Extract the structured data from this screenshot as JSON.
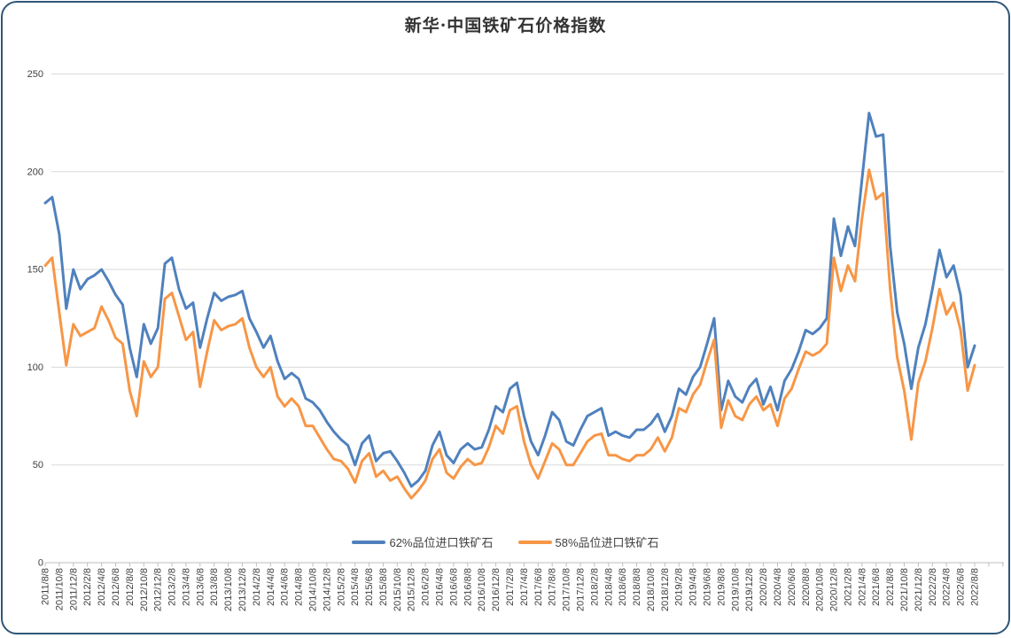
{
  "chart": {
    "frame_border_color": "#2F5679",
    "background": "#FFFFFF",
    "title_color": "#333333",
    "axis_text_color": "#3F3F3F",
    "gridline_color": "#D9D9D9",
    "axis_line_color": "#BFBFBF"
  },
  "chart_data": {
    "type": "line",
    "title": "新华·中国铁矿石价格指数",
    "xlabel": "",
    "ylabel": "",
    "ylim": [
      0,
      250
    ],
    "y_ticks": [
      0,
      50,
      100,
      150,
      200,
      250
    ],
    "grid": "horizontal",
    "legend_position": "bottom",
    "x_note": "series sampled monthly from 2011/8/8 to 2022/8/8; axis labeled every 2 months",
    "x_tick_labels": [
      "2011/8/8",
      "2011/10/8",
      "2011/12/8",
      "2012/2/8",
      "2012/4/8",
      "2012/6/8",
      "2012/8/8",
      "2012/10/8",
      "2012/12/8",
      "2013/2/8",
      "2013/4/8",
      "2013/6/8",
      "2013/8/8",
      "2013/10/8",
      "2013/12/8",
      "2014/2/8",
      "2014/4/8",
      "2014/6/8",
      "2014/8/8",
      "2014/10/8",
      "2014/12/8",
      "2015/2/8",
      "2015/4/8",
      "2015/6/8",
      "2015/8/8",
      "2015/10/8",
      "2015/12/8",
      "2016/2/8",
      "2016/4/8",
      "2016/6/8",
      "2016/8/8",
      "2016/10/8",
      "2016/12/8",
      "2017/2/8",
      "2017/4/8",
      "2017/6/8",
      "2017/8/8",
      "2017/10/8",
      "2017/12/8",
      "2018/2/8",
      "2018/4/8",
      "2018/6/8",
      "2018/8/8",
      "2018/10/8",
      "2018/12/8",
      "2019/2/8",
      "2019/4/8",
      "2019/6/8",
      "2019/8/8",
      "2019/10/8",
      "2019/12/8",
      "2020/2/8",
      "2020/4/8",
      "2020/6/8",
      "2020/8/8",
      "2020/10/8",
      "2020/12/8",
      "2021/2/8",
      "2021/4/8",
      "2021/6/8",
      "2021/8/8",
      "2021/10/8",
      "2021/12/8",
      "2022/2/8",
      "2022/4/8",
      "2022/6/8",
      "2022/8/8"
    ],
    "series": [
      {
        "name": "62%品位进口铁矿石",
        "color": "#4F81BD",
        "values": [
          184,
          187,
          168,
          130,
          150,
          140,
          145,
          147,
          150,
          144,
          137,
          132,
          110,
          95,
          122,
          112,
          120,
          153,
          156,
          140,
          130,
          133,
          110,
          125,
          138,
          134,
          136,
          137,
          139,
          125,
          118,
          110,
          116,
          103,
          94,
          97,
          94,
          84,
          82,
          78,
          72,
          67,
          63,
          60,
          50,
          61,
          65,
          52,
          56,
          57,
          52,
          46,
          39,
          42,
          47,
          60,
          67,
          55,
          51,
          58,
          61,
          58,
          59,
          68,
          80,
          77,
          89,
          92,
          75,
          62,
          55,
          65,
          77,
          73,
          62,
          60,
          68,
          75,
          77,
          79,
          65,
          67,
          65,
          64,
          68,
          68,
          71,
          76,
          67,
          75,
          89,
          86,
          95,
          100,
          112,
          125,
          78,
          93,
          85,
          82,
          90,
          94,
          81,
          90,
          78,
          93,
          99,
          108,
          119,
          117,
          120,
          125,
          176,
          157,
          172,
          162,
          196,
          230,
          218,
          219,
          162,
          128,
          112,
          89,
          110,
          122,
          140,
          160,
          146,
          152,
          137,
          100,
          111
        ]
      },
      {
        "name": "58%品位进口铁矿石",
        "color": "#F79646",
        "values": [
          152,
          156,
          128,
          101,
          122,
          116,
          118,
          120,
          131,
          124,
          115,
          112,
          88,
          75,
          103,
          95,
          100,
          135,
          138,
          126,
          114,
          118,
          90,
          108,
          124,
          119,
          121,
          122,
          125,
          110,
          100,
          95,
          100,
          85,
          80,
          84,
          80,
          70,
          70,
          64,
          58,
          53,
          52,
          48,
          41,
          52,
          56,
          44,
          47,
          42,
          44,
          38,
          33,
          37,
          42,
          53,
          58,
          46,
          43,
          49,
          53,
          50,
          51,
          59,
          70,
          66,
          78,
          80,
          62,
          50,
          43,
          52,
          61,
          58,
          50,
          50,
          56,
          62,
          65,
          66,
          55,
          55,
          53,
          52,
          55,
          55,
          58,
          64,
          57,
          64,
          79,
          77,
          86,
          91,
          103,
          114,
          69,
          83,
          75,
          73,
          81,
          85,
          78,
          81,
          70,
          84,
          89,
          99,
          108,
          106,
          108,
          112,
          156,
          139,
          152,
          144,
          176,
          201,
          186,
          189,
          140,
          105,
          88,
          63,
          92,
          103,
          120,
          140,
          127,
          133,
          119,
          88,
          101
        ]
      }
    ]
  }
}
